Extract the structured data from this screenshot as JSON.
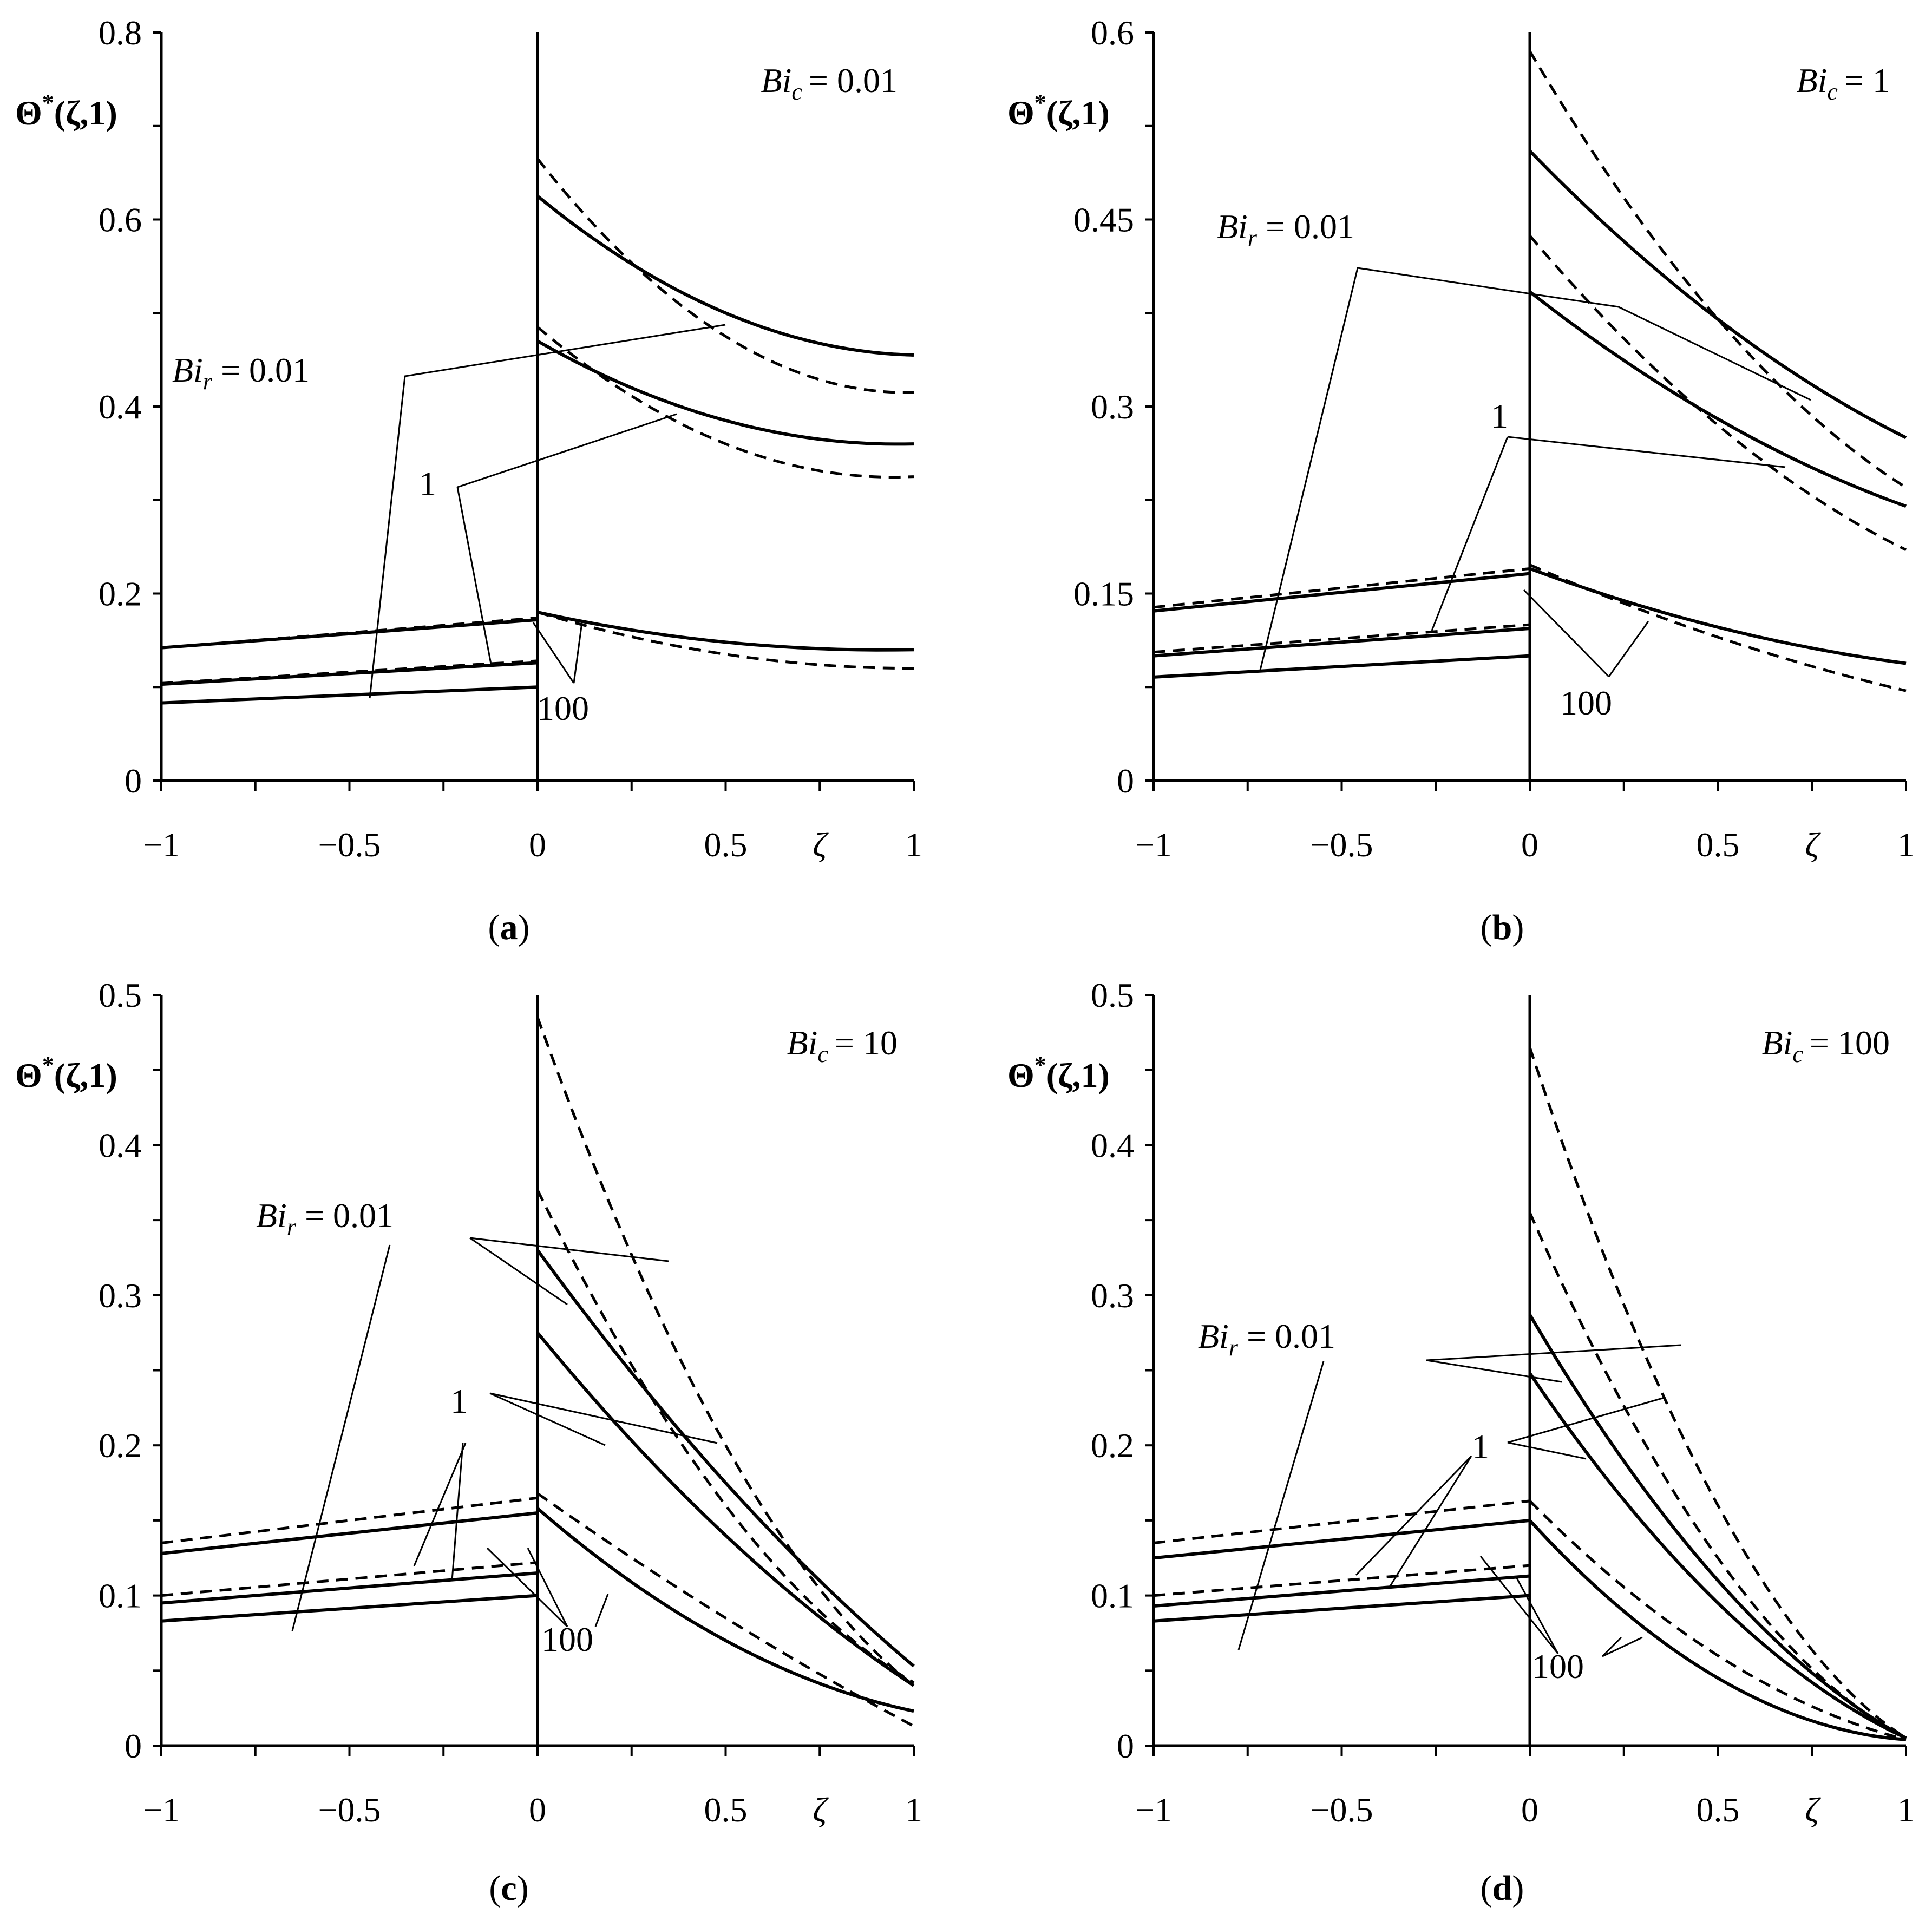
{
  "chart_data": [
    {
      "type": "line",
      "panel_label": "a",
      "case_param": "Bi",
      "case_sub": "c",
      "case_value": "= 0.01",
      "xlabel": "ζ",
      "ylabel_main": "Θ",
      "ylabel_sup": "*",
      "ylabel_args": "(ζ,1)",
      "xlim": [
        -1,
        1
      ],
      "ylim": [
        0,
        0.8
      ],
      "xticks": [
        {
          "v": -1,
          "label": "−1"
        },
        {
          "v": -0.5,
          "label": "−0.5"
        },
        {
          "v": 0,
          "label": "0"
        },
        {
          "v": 0.5,
          "label": "0.5"
        },
        {
          "v": 1,
          "label": "1"
        }
      ],
      "yticks": [
        {
          "v": 0,
          "label": "0"
        },
        {
          "v": 0.2,
          "label": "0.2"
        },
        {
          "v": 0.4,
          "label": "0.4"
        },
        {
          "v": 0.6,
          "label": "0.6"
        },
        {
          "v": 0.8,
          "label": "0.8"
        }
      ],
      "series": [
        {
          "name": "Bi_r = 0.01, dashed",
          "style": "dashed",
          "left": [
            0.142,
            0.174
          ],
          "right": [
            0.665,
            0.475,
            0.415
          ]
        },
        {
          "name": "Bi_r = 0.01, solid",
          "style": "solid",
          "left": [
            0.142,
            0.172
          ],
          "right": [
            0.625,
            0.5,
            0.455
          ]
        },
        {
          "name": "Bi_r = 1, dashed",
          "style": "dashed",
          "left": [
            0.104,
            0.128
          ],
          "right": [
            0.485,
            0.36,
            0.325
          ]
        },
        {
          "name": "Bi_r = 1, solid",
          "style": "solid",
          "left": [
            0.103,
            0.126
          ],
          "right": [
            0.47,
            0.385,
            0.36
          ]
        },
        {
          "name": "Bi_r = 100, dashed",
          "style": "dashed",
          "left": [
            0.083,
            0.1
          ],
          "right": [
            0.18,
            0.135,
            0.12
          ]
        },
        {
          "name": "Bi_r = 100, solid",
          "style": "solid",
          "left": [
            0.083,
            0.1
          ],
          "right": [
            0.18,
            0.148,
            0.14
          ]
        }
      ],
      "annotations": [
        {
          "text": "Bi",
          "sub": "r",
          "rest": " = 0.01"
        },
        {
          "text": "1"
        },
        {
          "text": "100"
        }
      ]
    },
    {
      "type": "line",
      "panel_label": "b",
      "case_param": "Bi",
      "case_sub": "c",
      "case_value": "= 1",
      "xlabel": "ζ",
      "ylabel_main": "Θ",
      "ylabel_sup": "*",
      "ylabel_args": "(ζ,1)",
      "xlim": [
        -1,
        1
      ],
      "ylim": [
        0,
        0.6
      ],
      "xticks": [
        {
          "v": -1,
          "label": "−1"
        },
        {
          "v": -0.5,
          "label": "−0.5"
        },
        {
          "v": 0,
          "label": "0"
        },
        {
          "v": 0.5,
          "label": "0.5"
        },
        {
          "v": 1,
          "label": "1"
        }
      ],
      "yticks": [
        {
          "v": 0,
          "label": "0"
        },
        {
          "v": 0.15,
          "label": "0.15"
        },
        {
          "v": 0.3,
          "label": "0.3"
        },
        {
          "v": 0.45,
          "label": "0.45"
        },
        {
          "v": 0.6,
          "label": "0.6"
        }
      ],
      "series": [
        {
          "name": "Bi_r = 0.01, dashed",
          "style": "dashed",
          "left": [
            0.139,
            0.17
          ],
          "right": [
            0.585,
            0.37,
            0.235
          ]
        },
        {
          "name": "Bi_r = 0.01, solid",
          "style": "solid",
          "left": [
            0.136,
            0.166
          ],
          "right": [
            0.505,
            0.37,
            0.275
          ]
        },
        {
          "name": "Bi_r = 1, dashed",
          "style": "dashed",
          "left": [
            0.103,
            0.125
          ],
          "right": [
            0.437,
            0.285,
            0.185
          ]
        },
        {
          "name": "Bi_r = 1, solid",
          "style": "solid",
          "left": [
            0.1,
            0.122
          ],
          "right": [
            0.392,
            0.29,
            0.22
          ]
        },
        {
          "name": "Bi_r = 100, dashed",
          "style": "dashed",
          "left": [
            0.083,
            0.1
          ],
          "right": [
            0.173,
            0.115,
            0.072
          ]
        },
        {
          "name": "Bi_r = 100, solid",
          "style": "solid",
          "left": [
            0.083,
            0.1
          ],
          "right": [
            0.17,
            0.123,
            0.094
          ]
        }
      ],
      "annotations": [
        {
          "text": "Bi",
          "sub": "r",
          "rest": " = 0.01"
        },
        {
          "text": "1"
        },
        {
          "text": "100"
        }
      ]
    },
    {
      "type": "line",
      "panel_label": "c",
      "case_param": "Bi",
      "case_sub": "c",
      "case_value": "= 10",
      "xlabel": "ζ",
      "ylabel_main": "Θ",
      "ylabel_sup": "*",
      "ylabel_args": "(ζ,1)",
      "xlim": [
        -1,
        1
      ],
      "ylim": [
        0,
        0.5
      ],
      "xticks": [
        {
          "v": -1,
          "label": "−1"
        },
        {
          "v": -0.5,
          "label": "−0.5"
        },
        {
          "v": 0,
          "label": "0"
        },
        {
          "v": 0.5,
          "label": "0.5"
        },
        {
          "v": 1,
          "label": "1"
        }
      ],
      "yticks": [
        {
          "v": 0,
          "label": "0"
        },
        {
          "v": 0.1,
          "label": "0.1"
        },
        {
          "v": 0.2,
          "label": "0.2"
        },
        {
          "v": 0.3,
          "label": "0.3"
        },
        {
          "v": 0.4,
          "label": "0.4"
        },
        {
          "v": 0.5,
          "label": "0.5"
        }
      ],
      "series": [
        {
          "name": "Bi_r = 0.01, dashed",
          "style": "dashed",
          "left": [
            0.135,
            0.165
          ],
          "right": [
            0.485,
            0.2,
            0.04
          ]
        },
        {
          "name": "Bi_r = 0.01, solid",
          "style": "solid",
          "left": [
            0.128,
            0.155
          ],
          "right": [
            0.33,
            0.175,
            0.053
          ]
        },
        {
          "name": "Bi_r = 1, dashed",
          "style": "dashed",
          "left": [
            0.1,
            0.122
          ],
          "right": [
            0.37,
            0.16,
            0.042
          ]
        },
        {
          "name": "Bi_r = 1, solid",
          "style": "solid",
          "left": [
            0.095,
            0.115
          ],
          "right": [
            0.275,
            0.14,
            0.04
          ]
        },
        {
          "name": "Bi_r = 100, dashed",
          "style": "dashed",
          "left": [
            0.083,
            0.1
          ],
          "right": [
            0.168,
            0.085,
            0.013
          ]
        },
        {
          "name": "Bi_r = 100, solid",
          "style": "solid",
          "left": [
            0.083,
            0.1
          ],
          "right": [
            0.158,
            0.07,
            0.023
          ]
        }
      ],
      "annotations": [
        {
          "text": "Bi",
          "sub": "r",
          "rest": " = 0.01"
        },
        {
          "text": "1"
        },
        {
          "text": "100"
        }
      ]
    },
    {
      "type": "line",
      "panel_label": "d",
      "case_param": "Bi",
      "case_sub": "c",
      "case_value": "= 100",
      "xlabel": "ζ",
      "ylabel_main": "Θ",
      "ylabel_sup": "*",
      "ylabel_args": "(ζ,1)",
      "xlim": [
        -1,
        1
      ],
      "ylim": [
        0,
        0.5
      ],
      "xticks": [
        {
          "v": -1,
          "label": "−1"
        },
        {
          "v": -0.5,
          "label": "−0.5"
        },
        {
          "v": 0,
          "label": "0"
        },
        {
          "v": 0.5,
          "label": "0.5"
        },
        {
          "v": 1,
          "label": "1"
        }
      ],
      "yticks": [
        {
          "v": 0,
          "label": "0"
        },
        {
          "v": 0.1,
          "label": "0.1"
        },
        {
          "v": 0.2,
          "label": "0.2"
        },
        {
          "v": 0.3,
          "label": "0.3"
        },
        {
          "v": 0.4,
          "label": "0.4"
        },
        {
          "v": 0.5,
          "label": "0.5"
        }
      ],
      "series": [
        {
          "name": "Bi_r = 0.01, dashed",
          "style": "dashed",
          "left": [
            0.135,
            0.163
          ],
          "right": [
            0.465,
            0.16,
            0.005
          ]
        },
        {
          "name": "Bi_r = 0.01, solid",
          "style": "solid",
          "left": [
            0.125,
            0.15
          ],
          "right": [
            0.287,
            0.11,
            0.005
          ]
        },
        {
          "name": "Bi_r = 1, dashed",
          "style": "dashed",
          "left": [
            0.1,
            0.12
          ],
          "right": [
            0.355,
            0.125,
            0.005
          ]
        },
        {
          "name": "Bi_r = 1, solid",
          "style": "solid",
          "left": [
            0.093,
            0.113
          ],
          "right": [
            0.248,
            0.095,
            0.005
          ]
        },
        {
          "name": "Bi_r = 100, dashed",
          "style": "dashed",
          "left": [
            0.083,
            0.1
          ],
          "right": [
            0.163,
            0.06,
            0.004
          ]
        },
        {
          "name": "Bi_r = 100, solid",
          "style": "solid",
          "left": [
            0.083,
            0.1
          ],
          "right": [
            0.15,
            0.045,
            0.004
          ]
        }
      ],
      "annotations": [
        {
          "text": "Bi",
          "sub": "r",
          "rest": " = 0.01"
        },
        {
          "text": "1"
        },
        {
          "text": "100"
        }
      ]
    }
  ]
}
